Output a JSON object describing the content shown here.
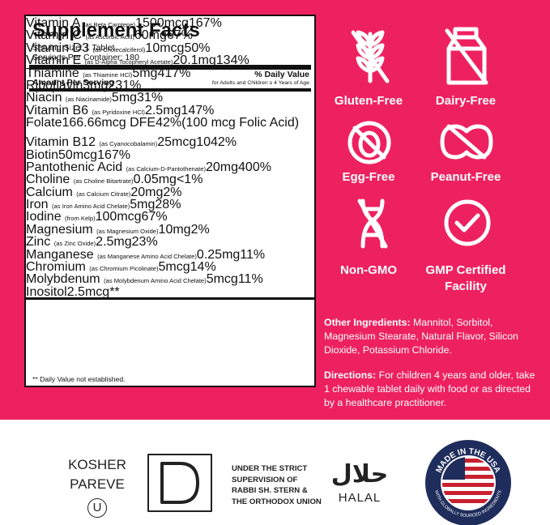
{
  "panel": {
    "title": "Supplement Facts",
    "serving_size": "Serving Size: 1 Tablet",
    "servings": "Servings Per Container: 180",
    "dv_header": "% Daily Value",
    "amount_header": "Amount Per Serving",
    "dv_note": "for Adults and Children ≥ 4 Years of Age",
    "rows": [
      {
        "name": "Vitamin A",
        "source": "(as Beta Carotene)",
        "amount": "1500",
        "unit": "mcg",
        "dv": "167%"
      },
      {
        "name": "Vitamin C",
        "source": "(as Ascorbic Acid)",
        "amount": "60",
        "unit": "mg",
        "dv": "67%"
      },
      {
        "name": "Vitamin D3",
        "source": "(as Cholecalciferol)",
        "amount": "10",
        "unit": "mcg",
        "dv": "50%"
      },
      {
        "name": "Vitamin E",
        "source": "(as D-Alpha Tocopheryl Acetate)",
        "amount": "20.1",
        "unit": "mg",
        "dv": "134%"
      },
      {
        "name": "Thiamine",
        "source": "(as Thiamine HCl)",
        "amount": "5",
        "unit": "mg",
        "dv": "417%"
      },
      {
        "name": "Riboflavin",
        "amount": "3",
        "unit": "mg",
        "dv": "231%"
      },
      {
        "name": "Niacin",
        "source": "(as Niacinamide)",
        "amount": "5",
        "unit": "mg",
        "dv": "31%"
      },
      {
        "name": "Vitamin B6",
        "source": "(as Pyridoxine HCl)",
        "amount": "2.5",
        "unit": "mg",
        "dv": "147%"
      },
      {
        "name": "Folate",
        "amount": "166.66",
        "unit": "mcg DFE",
        "dv": "42%",
        "note": "(100 mcg Folic Acid)"
      },
      {
        "name": "Vitamin B12",
        "source": "(as Cyanocobalamin)",
        "amount": "25",
        "unit": "mcg",
        "dv": "1042%"
      },
      {
        "name": "Biotin",
        "amount": "50",
        "unit": "mcg",
        "dv": "167%"
      },
      {
        "name": "Pantothenic Acid",
        "source": "(as Calcium-D-Pantothenate)",
        "amount": "20",
        "unit": "mg",
        "dv": "400%"
      },
      {
        "name": "Choline",
        "source": "(as Choline Bitartrate)",
        "amount": "0.05",
        "unit": "mg",
        "dv": "<1%"
      },
      {
        "name": "Calcium",
        "source": "(as Calcium Citrate)",
        "amount": "20",
        "unit": "mg",
        "dv": "2%"
      },
      {
        "name": "Iron",
        "source": "(as Iron Amino Acid Chelate)",
        "amount": "5",
        "unit": "mg",
        "dv": "28%"
      },
      {
        "name": "Iodine",
        "source": "(from Kelp)",
        "amount": "100",
        "unit": "mcg",
        "dv": "67%"
      },
      {
        "name": "Magnesium",
        "source": "(as Magnesium Oxide)",
        "amount": "10",
        "unit": "mg",
        "dv": "2%"
      },
      {
        "name": "Zinc",
        "source": "(as Zinc Oxide)",
        "amount": "2.5",
        "unit": "mg",
        "dv": "23%"
      },
      {
        "name": "Manganese",
        "source": "(as Manganese Amino Acid Chelate)",
        "amount": "0.25",
        "unit": "mg",
        "dv": "11%"
      },
      {
        "name": "Chromium",
        "source": "(as Chromium Picolinate)",
        "amount": "5",
        "unit": "mcg",
        "dv": "14%"
      },
      {
        "name": "Molybdenum",
        "source": "(as Molybdenum Amino Acid Chelate)",
        "amount": "5",
        "unit": "mcg",
        "dv": "11%"
      },
      {
        "name": "Inositol",
        "amount": "2.5",
        "unit": "mcg",
        "dv": "**"
      }
    ],
    "footnote": "** Daily Value not established."
  },
  "badges": [
    "Gluten-Free",
    "Dairy-Free",
    "Egg-Free",
    "Peanut-Free",
    "Non-GMO",
    "GMP Certified Facility"
  ],
  "other_ingredients": {
    "label": "Other Ingredients:",
    "text": "Mannitol, Sorbitol, Magnesium Stearate, Natural Flavor, Silicon Dioxide, Potassium Chloride."
  },
  "directions": {
    "label": "Directions:",
    "text": "For children 4 years and older, take 1 chewable tablet daily with food or as directed by a healthcare practitioner."
  },
  "certifications": {
    "kosher": [
      "KOSHER",
      "PAREVE"
    ],
    "kosher_symbol": "U",
    "supervision": "UNDER THE STRICT SUPERVISION OF RABBI SH. STERN & THE ORTHODOX UNION",
    "halal_arabic": "حلال",
    "halal": "HALAL",
    "usa_top": "MADE IN THE USA",
    "usa_bottom": "WITH GLOBALLY SOURCED INGREDIENTS"
  }
}
